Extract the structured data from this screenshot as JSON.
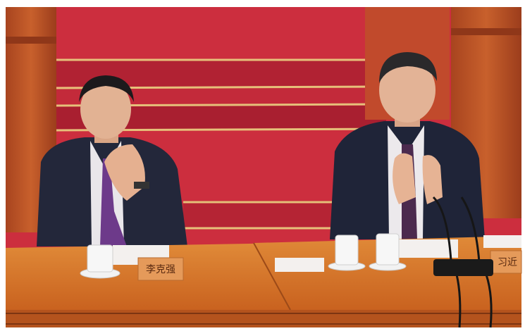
{
  "placards": [
    {
      "label": "李克强"
    },
    {
      "label": "习近"
    }
  ]
}
